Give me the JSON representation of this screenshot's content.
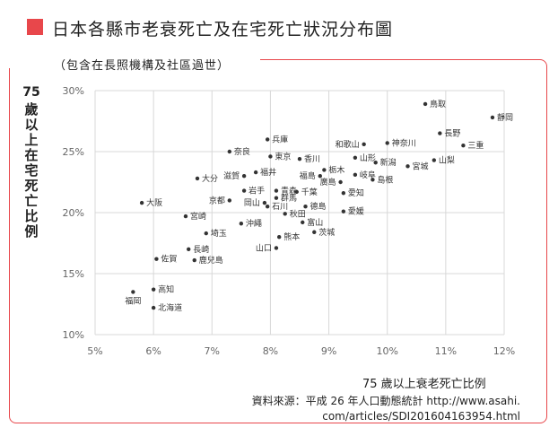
{
  "title": "日本各縣市老衰死亡及在宅死亡狀況分布圖",
  "subtitle": "（包含在長照機構及社區過世）",
  "source_line1": "資料來源：平成 26 年人口動態統計 http://www.asahi.",
  "source_line2": "com/articles/SDI201604163954.html",
  "colors": {
    "accent": "#e8474b",
    "points": "#333333",
    "grid": "#d8d8d8"
  },
  "chart_data": {
    "type": "scatter",
    "xlabel": "75 歲以上衰老死亡比例",
    "ylabel_num": "75",
    "ylabel_text": "歲以上在宅死亡比例",
    "xlim": [
      5,
      12
    ],
    "ylim": [
      10,
      30
    ],
    "xticks": [
      5,
      6,
      7,
      8,
      9,
      10,
      11,
      12
    ],
    "yticks": [
      10,
      15,
      20,
      25,
      30
    ],
    "xtick_labels": [
      "5%",
      "6%",
      "7%",
      "8%",
      "9%",
      "10%",
      "11%",
      "12%"
    ],
    "ytick_labels": [
      "10%",
      "15%",
      "20%",
      "25%",
      "30%"
    ],
    "grid": true,
    "points": [
      {
        "label": "鳥取",
        "x": 10.65,
        "y": 28.9,
        "pos": "right"
      },
      {
        "label": "靜岡",
        "x": 11.8,
        "y": 27.8,
        "pos": "right"
      },
      {
        "label": "長野",
        "x": 10.9,
        "y": 26.5,
        "pos": "right"
      },
      {
        "label": "三重",
        "x": 11.3,
        "y": 25.5,
        "pos": "right"
      },
      {
        "label": "山梨",
        "x": 10.8,
        "y": 24.3,
        "pos": "right"
      },
      {
        "label": "宮城",
        "x": 10.35,
        "y": 23.8,
        "pos": "right"
      },
      {
        "label": "神奈川",
        "x": 10.0,
        "y": 25.7,
        "pos": "right"
      },
      {
        "label": "和歌山",
        "x": 9.6,
        "y": 25.6,
        "pos": "left"
      },
      {
        "label": "山形",
        "x": 9.45,
        "y": 24.5,
        "pos": "right"
      },
      {
        "label": "新潟",
        "x": 9.8,
        "y": 24.1,
        "pos": "right"
      },
      {
        "label": "栃木",
        "x": 8.92,
        "y": 23.5,
        "pos": "right"
      },
      {
        "label": "岐阜",
        "x": 9.45,
        "y": 23.1,
        "pos": "right"
      },
      {
        "label": "島根",
        "x": 9.75,
        "y": 22.7,
        "pos": "right"
      },
      {
        "label": "廣島",
        "x": 9.2,
        "y": 22.5,
        "pos": "left"
      },
      {
        "label": "愛知",
        "x": 9.25,
        "y": 21.6,
        "pos": "right"
      },
      {
        "label": "愛媛",
        "x": 9.25,
        "y": 20.1,
        "pos": "right"
      },
      {
        "label": "兵庫",
        "x": 7.95,
        "y": 26.0,
        "pos": "right"
      },
      {
        "label": "奈良",
        "x": 7.3,
        "y": 25.0,
        "pos": "right"
      },
      {
        "label": "東京",
        "x": 8.0,
        "y": 24.6,
        "pos": "right"
      },
      {
        "label": "香川",
        "x": 8.5,
        "y": 24.4,
        "pos": "right"
      },
      {
        "label": "福井",
        "x": 7.75,
        "y": 23.3,
        "pos": "right"
      },
      {
        "label": "滋賀",
        "x": 7.55,
        "y": 23.0,
        "pos": "left"
      },
      {
        "label": "福島",
        "x": 8.85,
        "y": 23.0,
        "pos": "left"
      },
      {
        "label": "大分",
        "x": 6.75,
        "y": 22.8,
        "pos": "right"
      },
      {
        "label": "岩手",
        "x": 7.55,
        "y": 21.8,
        "pos": "right"
      },
      {
        "label": "青森",
        "x": 8.1,
        "y": 21.8,
        "pos": "right"
      },
      {
        "label": "千葉",
        "x": 8.45,
        "y": 21.7,
        "pos": "right"
      },
      {
        "label": "群馬",
        "x": 8.1,
        "y": 21.2,
        "pos": "right"
      },
      {
        "label": "京都",
        "x": 7.3,
        "y": 21.0,
        "pos": "left"
      },
      {
        "label": "岡山",
        "x": 7.9,
        "y": 20.8,
        "pos": "left"
      },
      {
        "label": "石川",
        "x": 7.95,
        "y": 20.5,
        "pos": "right"
      },
      {
        "label": "德島",
        "x": 8.6,
        "y": 20.5,
        "pos": "right"
      },
      {
        "label": "大阪",
        "x": 5.8,
        "y": 20.8,
        "pos": "right"
      },
      {
        "label": "宮崎",
        "x": 6.55,
        "y": 19.7,
        "pos": "right"
      },
      {
        "label": "秋田",
        "x": 8.25,
        "y": 19.9,
        "pos": "right"
      },
      {
        "label": "沖繩",
        "x": 7.5,
        "y": 19.1,
        "pos": "right"
      },
      {
        "label": "富山",
        "x": 8.55,
        "y": 19.2,
        "pos": "right"
      },
      {
        "label": "埼玉",
        "x": 6.9,
        "y": 18.3,
        "pos": "right"
      },
      {
        "label": "茨城",
        "x": 8.75,
        "y": 18.4,
        "pos": "right"
      },
      {
        "label": "熊本",
        "x": 8.15,
        "y": 18.0,
        "pos": "right"
      },
      {
        "label": "山口",
        "x": 8.1,
        "y": 17.1,
        "pos": "left"
      },
      {
        "label": "長崎",
        "x": 6.6,
        "y": 17.0,
        "pos": "right"
      },
      {
        "label": "佐賀",
        "x": 6.05,
        "y": 16.2,
        "pos": "right"
      },
      {
        "label": "鹿兒島",
        "x": 6.7,
        "y": 16.1,
        "pos": "right"
      },
      {
        "label": "高知",
        "x": 6.0,
        "y": 13.7,
        "pos": "right"
      },
      {
        "label": "福岡",
        "x": 5.65,
        "y": 13.5,
        "pos": "below"
      },
      {
        "label": "北海道",
        "x": 6.0,
        "y": 12.2,
        "pos": "right"
      }
    ]
  }
}
